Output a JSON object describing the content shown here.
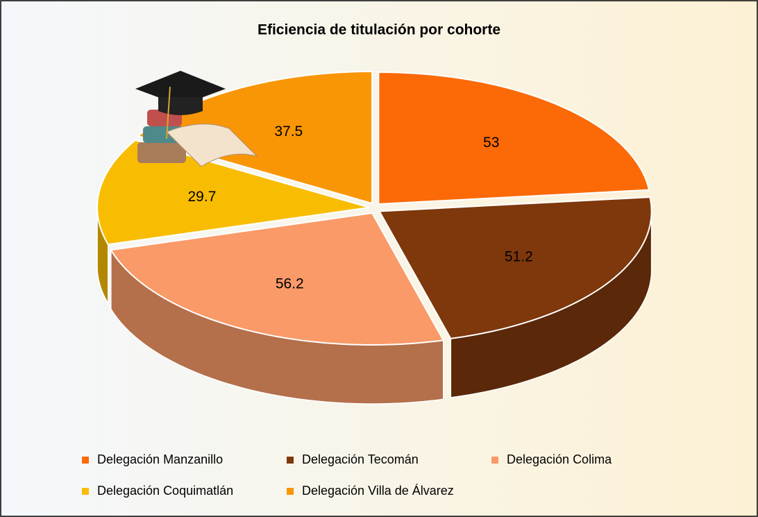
{
  "chart_data": {
    "type": "pie",
    "title": "Eficiencia de titulación por cohorte",
    "categories": [
      "Delegación Manzanillo",
      "Delegación Tecomán",
      "Delegación Colima",
      "Delegación Coquimatlán",
      "Delegación Villa de Álvarez"
    ],
    "values": [
      53,
      51.2,
      56.2,
      29.7,
      37.5
    ],
    "colors": [
      "#fb6a06",
      "#7e380c",
      "#fa9a68",
      "#f8bd02",
      "#f99605"
    ],
    "legend": "bottom"
  }
}
